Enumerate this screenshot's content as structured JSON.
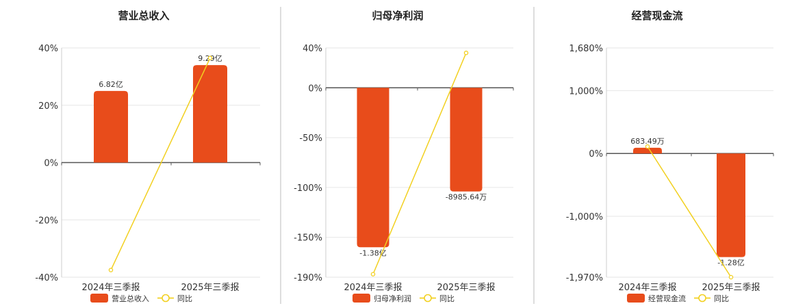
{
  "colors": {
    "bar": "#E84C1B",
    "line": "#F2D020",
    "axis": "#555555",
    "grid": "#E6E6E6",
    "divider": "#BBBBBB"
  },
  "chart_data": [
    {
      "type": "bar",
      "title": "营业总收入",
      "categories": [
        "2024年三季报",
        "2025年三季报"
      ],
      "ylim": [
        -40,
        40
      ],
      "yticks": [
        40,
        20,
        0,
        -20,
        -40
      ],
      "ytick_labels": [
        "40%",
        "20%",
        "0%",
        "-20%",
        "-40%"
      ],
      "series": [
        {
          "name": "营业总收入",
          "kind": "bar",
          "values": [
            25,
            34
          ],
          "labels": [
            "6.82亿",
            "9.29亿"
          ]
        },
        {
          "name": "同比",
          "kind": "line",
          "values": [
            -37.5,
            36.5
          ]
        }
      ],
      "grid": true,
      "legend": "bottom"
    },
    {
      "type": "bar",
      "title": "归母净利润",
      "categories": [
        "2024年三季报",
        "2025年三季报"
      ],
      "ylim": [
        -190,
        40
      ],
      "yticks": [
        40,
        0,
        -50,
        -100,
        -150,
        -190
      ],
      "ytick_labels": [
        "40%",
        "0%",
        "-50%",
        "-100%",
        "-150%",
        "-190%"
      ],
      "series": [
        {
          "name": "归母净利润",
          "kind": "bar",
          "values": [
            -160,
            -104
          ],
          "labels": [
            "-1.38亿",
            "-8985.64万"
          ]
        },
        {
          "name": "同比",
          "kind": "line",
          "values": [
            -187,
            35
          ]
        }
      ],
      "grid": true,
      "legend": "bottom"
    },
    {
      "type": "bar",
      "title": "经营现金流",
      "categories": [
        "2024年三季报",
        "2025年三季报"
      ],
      "ylim": [
        -1970,
        1680
      ],
      "yticks": [
        1680,
        1000,
        0,
        -1000,
        -1970
      ],
      "ytick_labels": [
        "1,680%",
        "1,000%",
        "0%",
        "-1,000%",
        "-1,970%"
      ],
      "series": [
        {
          "name": "经营现金流",
          "kind": "bar",
          "values": [
            90,
            -1650
          ],
          "labels": [
            "683.49万",
            "-1.28亿"
          ]
        },
        {
          "name": "同比",
          "kind": "line",
          "values": [
            110,
            -1970
          ]
        }
      ],
      "grid": true,
      "legend": "bottom"
    }
  ]
}
